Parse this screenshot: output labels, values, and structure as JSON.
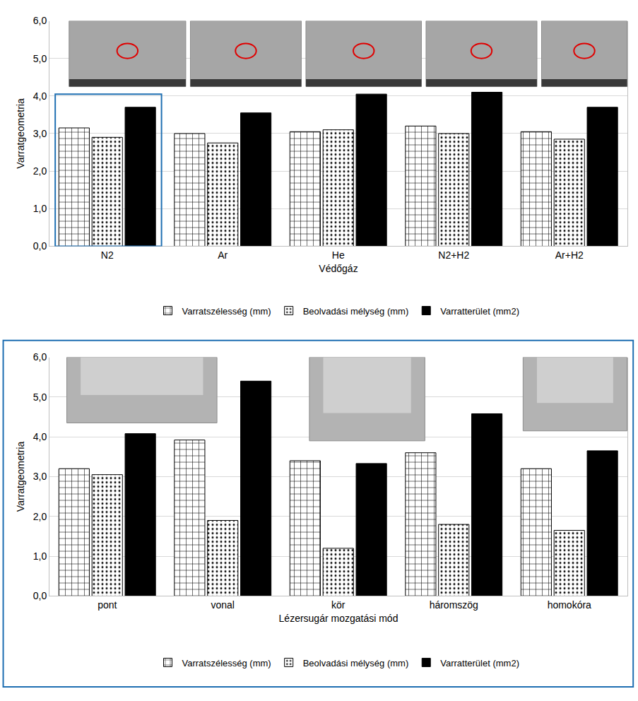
{
  "chart_data": [
    {
      "type": "bar",
      "x_label": "Védőgáz",
      "y_label": "Varratgeometria",
      "categories": [
        "N2",
        "Ar",
        "He",
        "N2+H2",
        "Ar+H2"
      ],
      "series": [
        {
          "name": "Varratszélesség (mm)",
          "color": "#ffffff",
          "marker": "grid",
          "values": [
            3.15,
            3.0,
            3.05,
            3.2,
            3.05
          ]
        },
        {
          "name": "Beolvadási mélység (mm)",
          "color": "#ffffff",
          "marker": "dots",
          "values": [
            2.9,
            2.75,
            3.1,
            3.0,
            2.85
          ]
        },
        {
          "name": "Varratterület (mm2)",
          "color": "#000000",
          "marker": "solid",
          "values": [
            3.7,
            3.55,
            4.05,
            4.1,
            3.7
          ]
        }
      ],
      "ylim": [
        0,
        6
      ],
      "yticks": [
        {
          "value": 0,
          "label": "0,0"
        },
        {
          "value": 1,
          "label": "1,0"
        },
        {
          "value": 2,
          "label": "2,0"
        },
        {
          "value": 3,
          "label": "3,0"
        },
        {
          "value": 4,
          "label": "4,0"
        },
        {
          "value": 5,
          "label": "5,0"
        },
        {
          "value": 6,
          "label": "6,0"
        }
      ],
      "grid": true,
      "legend": "bottom"
    },
    {
      "type": "bar",
      "x_label": "Lézersugár mozgatási mód",
      "y_label": "Varratgeometria",
      "categories": [
        "pont",
        "vonal",
        "kör",
        "háromszög",
        "homokóra"
      ],
      "series": [
        {
          "name": "Varratszélesség (mm)",
          "color": "#ffffff",
          "marker": "grid",
          "values": [
            3.2,
            3.92,
            3.4,
            3.6,
            3.2
          ]
        },
        {
          "name": "Beolvadási mélység (mm)",
          "color": "#ffffff",
          "marker": "dots",
          "values": [
            3.05,
            1.9,
            1.2,
            1.8,
            1.65
          ]
        },
        {
          "name": "Varratterület (mm2)",
          "color": "#000000",
          "marker": "solid",
          "values": [
            4.08,
            5.4,
            3.33,
            4.58,
            3.65
          ]
        }
      ],
      "ylim": [
        0,
        6
      ],
      "yticks": [
        {
          "value": 0,
          "label": "0,0"
        },
        {
          "value": 1,
          "label": "1,0"
        },
        {
          "value": 2,
          "label": "2,0"
        },
        {
          "value": 3,
          "label": "3,0"
        },
        {
          "value": 4,
          "label": "4,0"
        },
        {
          "value": 5,
          "label": "5,0"
        },
        {
          "value": 6,
          "label": "6,0"
        }
      ],
      "grid": true,
      "legend": "bottom"
    }
  ]
}
